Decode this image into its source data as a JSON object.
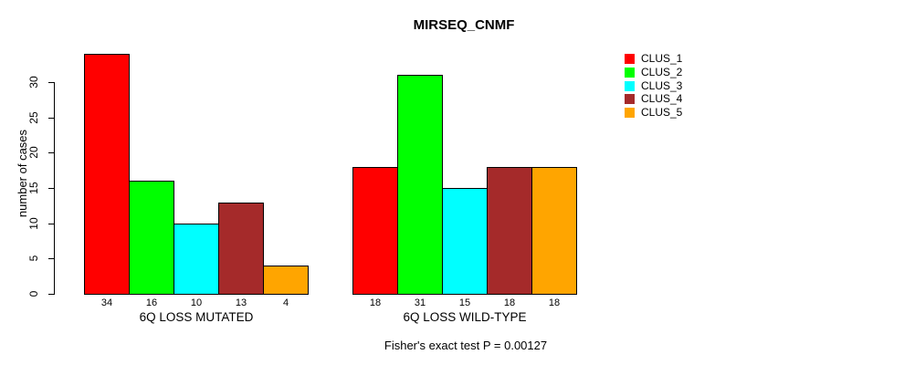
{
  "title": "MIRSEQ_CNMF",
  "ylabel": "number of cases",
  "annotation": "Fisher's exact test P = 0.00127",
  "chart_data": {
    "type": "bar",
    "title": "MIRSEQ_CNMF",
    "xlabel": "",
    "ylabel": "number of cases",
    "ylim": [
      0,
      34
    ],
    "yticks": [
      0,
      5,
      10,
      15,
      20,
      25,
      30
    ],
    "grid": false,
    "legend_position": "right",
    "series_names": [
      "CLUS_1",
      "CLUS_2",
      "CLUS_3",
      "CLUS_4",
      "CLUS_5"
    ],
    "colors": [
      "#FF0000",
      "#00FF00",
      "#00FFFF",
      "#A52A2A",
      "#FFA500"
    ],
    "groups": [
      {
        "label": "6Q LOSS MUTATED",
        "values": [
          34,
          16,
          10,
          13,
          4
        ]
      },
      {
        "label": "6Q LOSS WILD-TYPE",
        "values": [
          18,
          31,
          15,
          18,
          18
        ]
      }
    ],
    "annotation": "Fisher's exact test P = 0.00127"
  },
  "legend": {
    "items": [
      {
        "label": "CLUS_1",
        "color": "#FF0000"
      },
      {
        "label": "CLUS_2",
        "color": "#00FF00"
      },
      {
        "label": "CLUS_3",
        "color": "#00FFFF"
      },
      {
        "label": "CLUS_4",
        "color": "#A52A2A"
      },
      {
        "label": "CLUS_5",
        "color": "#FFA500"
      }
    ]
  }
}
